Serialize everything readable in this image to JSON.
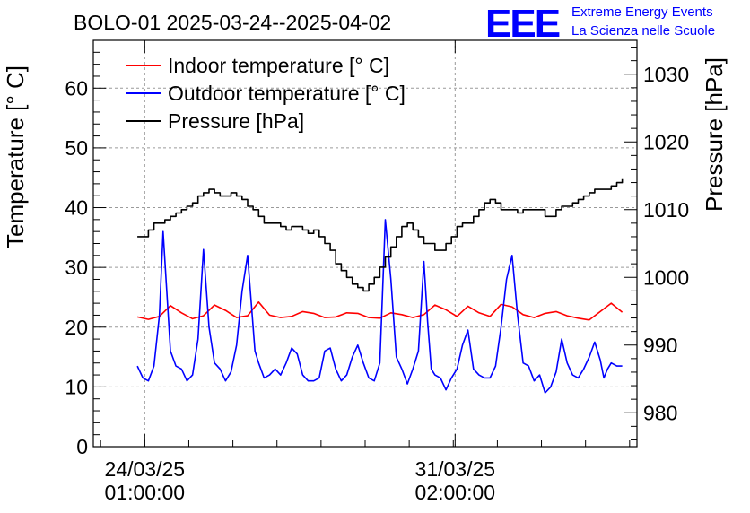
{
  "title": "BOLO-01 2025-03-24--2025-04-02",
  "logo": {
    "mark": "EEE",
    "line1": "Extreme Energy Events",
    "line2": "La Scienza nelle Scuole",
    "color": "#0000ff"
  },
  "chart_data": {
    "type": "line",
    "x_axis": {
      "type": "time",
      "range": [
        "2025-03-22T21:00",
        "2025-04-04T05:00"
      ],
      "ticks": [
        {
          "at": "2025-03-24T01:00",
          "label_line1": "24/03/25",
          "label_line2": "01:00:00"
        },
        {
          "at": "2025-03-31T02:00",
          "label_line1": "31/03/25",
          "label_line2": "02:00:00"
        }
      ]
    },
    "y_left": {
      "label": "Temperature [° C]",
      "range": [
        0,
        68
      ],
      "ticks": [
        0,
        10,
        20,
        30,
        40,
        50,
        60
      ]
    },
    "y_right": {
      "label": "Pressure [hPa]",
      "range": [
        975,
        1035
      ],
      "ticks": [
        980,
        990,
        1000,
        1010,
        1020,
        1030
      ]
    },
    "grid": true,
    "legend_position": "top-left",
    "series": [
      {
        "name": "Indoor temperature [° C]",
        "axis": "left",
        "color": "#ff0000",
        "x": [
          "2025-03-23T21:00",
          "2025-03-24T03:00",
          "2025-03-24T09:00",
          "2025-03-24T15:00",
          "2025-03-24T21:00",
          "2025-03-25T03:00",
          "2025-03-25T09:00",
          "2025-03-25T15:00",
          "2025-03-25T21:00",
          "2025-03-26T03:00",
          "2025-03-26T09:00",
          "2025-03-26T15:00",
          "2025-03-26T21:00",
          "2025-03-27T03:00",
          "2025-03-27T09:00",
          "2025-03-27T15:00",
          "2025-03-27T21:00",
          "2025-03-28T03:00",
          "2025-03-28T09:00",
          "2025-03-28T15:00",
          "2025-03-28T21:00",
          "2025-03-29T03:00",
          "2025-03-29T09:00",
          "2025-03-29T15:00",
          "2025-03-29T21:00",
          "2025-03-30T03:00",
          "2025-03-30T09:00",
          "2025-03-30T15:00",
          "2025-03-30T21:00",
          "2025-03-31T03:00",
          "2025-03-31T09:00",
          "2025-03-31T15:00",
          "2025-03-31T21:00",
          "2025-04-01T03:00",
          "2025-04-01T09:00",
          "2025-04-01T15:00",
          "2025-04-01T21:00",
          "2025-04-02T03:00",
          "2025-04-02T09:00",
          "2025-04-02T15:00",
          "2025-04-02T21:00",
          "2025-04-03T03:00",
          "2025-04-03T09:00",
          "2025-04-03T15:00",
          "2025-04-03T21:00"
        ],
        "y": [
          21.7,
          21.3,
          21.8,
          23.6,
          22.4,
          21.4,
          21.9,
          23.7,
          22.8,
          21.6,
          21.9,
          24.2,
          22.0,
          21.6,
          21.8,
          22.6,
          22.3,
          21.6,
          21.7,
          22.4,
          22.3,
          21.6,
          21.5,
          22.4,
          22.1,
          21.6,
          22.1,
          23.7,
          22.9,
          21.8,
          23.5,
          22.4,
          21.8,
          23.8,
          23.4,
          22.1,
          21.6,
          22.3,
          22.6,
          21.9,
          21.5,
          21.2,
          22.6,
          24.0,
          22.5
        ]
      },
      {
        "name": "Outdoor temperature [° C]",
        "axis": "left",
        "color": "#0000ff",
        "x": [
          "2025-03-23T21:00",
          "2025-03-24T00:00",
          "2025-03-24T03:00",
          "2025-03-24T06:00",
          "2025-03-24T09:00",
          "2025-03-24T11:00",
          "2025-03-24T13:00",
          "2025-03-24T15:00",
          "2025-03-24T18:00",
          "2025-03-24T21:00",
          "2025-03-25T00:00",
          "2025-03-25T03:00",
          "2025-03-25T06:00",
          "2025-03-25T09:00",
          "2025-03-25T12:00",
          "2025-03-25T15:00",
          "2025-03-25T18:00",
          "2025-03-25T21:00",
          "2025-03-26T00:00",
          "2025-03-26T03:00",
          "2025-03-26T06:00",
          "2025-03-26T09:00",
          "2025-03-26T11:00",
          "2025-03-26T13:00",
          "2025-03-26T15:00",
          "2025-03-26T18:00",
          "2025-03-26T21:00",
          "2025-03-27T00:00",
          "2025-03-27T03:00",
          "2025-03-27T06:00",
          "2025-03-27T09:00",
          "2025-03-27T12:00",
          "2025-03-27T15:00",
          "2025-03-27T18:00",
          "2025-03-27T21:00",
          "2025-03-28T00:00",
          "2025-03-28T03:00",
          "2025-03-28T06:00",
          "2025-03-28T09:00",
          "2025-03-28T12:00",
          "2025-03-28T15:00",
          "2025-03-28T18:00",
          "2025-03-28T21:00",
          "2025-03-29T00:00",
          "2025-03-29T03:00",
          "2025-03-29T06:00",
          "2025-03-29T09:00",
          "2025-03-29T12:00",
          "2025-03-29T15:00",
          "2025-03-29T18:00",
          "2025-03-29T21:00",
          "2025-03-30T00:00",
          "2025-03-30T03:00",
          "2025-03-30T06:00",
          "2025-03-30T09:00",
          "2025-03-30T11:00",
          "2025-03-30T13:00",
          "2025-03-30T15:00",
          "2025-03-30T18:00",
          "2025-03-30T21:00",
          "2025-03-31T00:00",
          "2025-03-31T03:00",
          "2025-03-31T06:00",
          "2025-03-31T09:00",
          "2025-03-31T12:00",
          "2025-03-31T15:00",
          "2025-03-31T18:00",
          "2025-03-31T21:00",
          "2025-04-01T00:00",
          "2025-04-01T03:00",
          "2025-04-01T06:00",
          "2025-04-01T09:00",
          "2025-04-01T12:00",
          "2025-04-01T15:00",
          "2025-04-01T18:00",
          "2025-04-01T21:00",
          "2025-04-02T00:00",
          "2025-04-02T03:00",
          "2025-04-02T06:00",
          "2025-04-02T09:00",
          "2025-04-02T12:00",
          "2025-04-02T15:00",
          "2025-04-02T18:00",
          "2025-04-02T21:00",
          "2025-04-03T00:00",
          "2025-04-03T03:00",
          "2025-04-03T06:00",
          "2025-04-03T09:00",
          "2025-04-03T11:00",
          "2025-04-03T13:00",
          "2025-04-03T15:00",
          "2025-04-03T18:00",
          "2025-04-03T21:00"
        ],
        "y": [
          13.5,
          11.5,
          11.0,
          13.5,
          22.0,
          36.0,
          26.0,
          16.0,
          13.5,
          13.0,
          11.0,
          12.0,
          18.0,
          33.0,
          20.0,
          14.0,
          13.0,
          11.0,
          12.5,
          17.0,
          26.0,
          32.0,
          24.0,
          16.0,
          14.0,
          11.5,
          12.0,
          13.0,
          12.0,
          14.0,
          16.5,
          15.5,
          12.0,
          11.0,
          11.0,
          11.5,
          16.0,
          16.5,
          13.0,
          11.0,
          12.0,
          15.0,
          17.0,
          14.0,
          11.5,
          11.0,
          14.0,
          38.0,
          28.0,
          15.0,
          13.0,
          10.5,
          13.0,
          16.0,
          31.0,
          21.0,
          13.0,
          12.0,
          11.5,
          9.5,
          11.5,
          13.0,
          17.0,
          19.5,
          13.0,
          12.0,
          11.5,
          11.5,
          13.5,
          20.0,
          28.0,
          32.0,
          22.0,
          14.0,
          13.5,
          11.0,
          12.0,
          9.0,
          10.0,
          12.5,
          18.0,
          14.0,
          12.0,
          11.5,
          13.0,
          15.0,
          17.5,
          14.5,
          11.5,
          13.0,
          14.0,
          13.5,
          13.5
        ]
      },
      {
        "name": "Pressure [hPa]",
        "axis": "right",
        "color": "#000000",
        "x": [
          "2025-03-23T21:00",
          "2025-03-24T00:00",
          "2025-03-24T03:00",
          "2025-03-24T06:00",
          "2025-03-24T09:00",
          "2025-03-24T12:00",
          "2025-03-24T15:00",
          "2025-03-24T18:00",
          "2025-03-24T21:00",
          "2025-03-25T00:00",
          "2025-03-25T03:00",
          "2025-03-25T06:00",
          "2025-03-25T09:00",
          "2025-03-25T12:00",
          "2025-03-25T15:00",
          "2025-03-25T18:00",
          "2025-03-25T21:00",
          "2025-03-26T00:00",
          "2025-03-26T03:00",
          "2025-03-26T06:00",
          "2025-03-26T09:00",
          "2025-03-26T12:00",
          "2025-03-26T15:00",
          "2025-03-26T18:00",
          "2025-03-26T21:00",
          "2025-03-27T00:00",
          "2025-03-27T03:00",
          "2025-03-27T06:00",
          "2025-03-27T09:00",
          "2025-03-27T12:00",
          "2025-03-27T15:00",
          "2025-03-27T18:00",
          "2025-03-27T21:00",
          "2025-03-28T00:00",
          "2025-03-28T03:00",
          "2025-03-28T06:00",
          "2025-03-28T09:00",
          "2025-03-28T12:00",
          "2025-03-28T15:00",
          "2025-03-28T18:00",
          "2025-03-28T21:00",
          "2025-03-29T00:00",
          "2025-03-29T03:00",
          "2025-03-29T06:00",
          "2025-03-29T09:00",
          "2025-03-29T12:00",
          "2025-03-29T15:00",
          "2025-03-29T18:00",
          "2025-03-29T21:00",
          "2025-03-30T00:00",
          "2025-03-30T03:00",
          "2025-03-30T06:00",
          "2025-03-30T09:00",
          "2025-03-30T12:00",
          "2025-03-30T15:00",
          "2025-03-30T18:00",
          "2025-03-30T21:00",
          "2025-03-31T00:00",
          "2025-03-31T03:00",
          "2025-03-31T06:00",
          "2025-03-31T09:00",
          "2025-03-31T12:00",
          "2025-03-31T15:00",
          "2025-03-31T18:00",
          "2025-03-31T21:00",
          "2025-04-01T00:00",
          "2025-04-01T03:00",
          "2025-04-01T06:00",
          "2025-04-01T09:00",
          "2025-04-01T12:00",
          "2025-04-01T15:00",
          "2025-04-01T18:00",
          "2025-04-01T21:00",
          "2025-04-02T00:00",
          "2025-04-02T03:00",
          "2025-04-02T06:00",
          "2025-04-02T09:00",
          "2025-04-02T12:00",
          "2025-04-02T15:00",
          "2025-04-02T18:00",
          "2025-04-02T21:00",
          "2025-04-03T00:00",
          "2025-04-03T03:00",
          "2025-04-03T06:00",
          "2025-04-03T09:00",
          "2025-04-03T12:00",
          "2025-04-03T15:00",
          "2025-04-03T18:00",
          "2025-04-03T21:00"
        ],
        "y": [
          1006,
          1006,
          1007,
          1008,
          1008,
          1008.5,
          1009,
          1009.5,
          1010,
          1010.5,
          1011,
          1012,
          1012.5,
          1013,
          1012.5,
          1012,
          1012,
          1012.5,
          1012,
          1011.5,
          1010.5,
          1010,
          1009,
          1008,
          1008,
          1008,
          1007.5,
          1007,
          1007.5,
          1007.5,
          1007,
          1006.5,
          1007,
          1006,
          1005,
          1004,
          1002,
          1001,
          1000,
          999,
          998.5,
          998,
          999,
          1000,
          1001.5,
          1003,
          1004.5,
          1006,
          1007.5,
          1008,
          1007,
          1006,
          1005,
          1005,
          1004,
          1004,
          1005,
          1006,
          1007.5,
          1008,
          1008,
          1009,
          1010,
          1011,
          1011.5,
          1011,
          1010,
          1010,
          1010,
          1009.5,
          1010,
          1010,
          1010,
          1010,
          1009,
          1009,
          1010,
          1010.5,
          1010.5,
          1011,
          1011.5,
          1012,
          1012.5,
          1013,
          1013,
          1013,
          1013.5,
          1014,
          1014.5
        ]
      }
    ]
  }
}
